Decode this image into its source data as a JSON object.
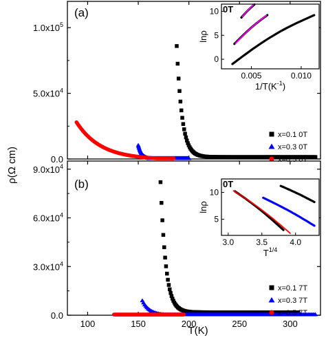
{
  "figure": {
    "ylabel": "ρ(Ω cm)",
    "xlabel": "T(K)"
  },
  "chart_data": [
    {
      "type": "scatter",
      "panel": "(a)",
      "xlabel": "T(K)",
      "ylabel": "ρ(Ω cm)",
      "xlim": [
        80,
        330
      ],
      "ylim": [
        0,
        120000
      ],
      "yticks": [
        0,
        50000,
        100000
      ],
      "ytick_labels": [
        "0.0",
        "5.0x10",
        "1.0x10"
      ],
      "ytick_exp": [
        "",
        "4",
        "5"
      ],
      "legend_position": "bottom-right",
      "series": [
        {
          "name": "x=0.1 0T",
          "color": "#000000",
          "marker": "square",
          "shape": "decay",
          "x_start": 188,
          "x_end": 325,
          "y_start": 86000,
          "y_end": 1500,
          "decay": 26
        },
        {
          "name": "x=0.3 0T",
          "color": "#0000ff",
          "marker": "triangle",
          "shape": "decay",
          "x_start": 150,
          "x_end": 200,
          "y_start": 10500,
          "y_end": 0,
          "decay": 14
        },
        {
          "name": "x=0.5 0T",
          "color": "#ff0000",
          "marker": "circle",
          "shape": "decay",
          "x_start": 89,
          "x_end": 185,
          "y_start": 28000,
          "y_end": 0,
          "decay": 4
        }
      ],
      "inset": {
        "annotation": "0T",
        "xlabel": "1/T(K",
        "xlabel_sup": "-1",
        "xlabel_end": ")",
        "ylabel": "lnρ",
        "xlim": [
          0.002,
          0.0118
        ],
        "ylim": [
          -2,
          11.5
        ],
        "xticks": [
          0.005,
          0.01
        ],
        "xtick_labels": [
          "0.005",
          "0.010"
        ],
        "yticks": [
          0,
          5,
          10
        ],
        "ytick_labels": [
          "0",
          "5",
          "10"
        ],
        "series": [
          {
            "color": "#000000",
            "x": [
              0.0031,
              0.0113
            ],
            "y": [
              -1.0,
              9.2
            ],
            "curve": 0.55
          },
          {
            "color": "#000000",
            "x": [
              0.0033,
              0.0066
            ],
            "y": [
              3.2,
              9.2
            ],
            "curve": 0.35
          },
          {
            "color": "#000000",
            "x": [
              0.004,
              0.0053
            ],
            "y": [
              8.7,
              11.4
            ],
            "curve": 0.3
          }
        ],
        "fits": [
          {
            "color": "#ff00ff",
            "x": [
              0.0034,
              0.0065
            ],
            "y": [
              3.3,
              9.1
            ],
            "curve": 0.35
          },
          {
            "color": "#ff00ff",
            "x": [
              0.0041,
              0.0052
            ],
            "y": [
              8.9,
              11.3
            ],
            "curve": 0.3
          }
        ]
      }
    },
    {
      "type": "scatter",
      "panel": "(b)",
      "xlabel": "T(K)",
      "ylabel": "ρ(Ω cm)",
      "xlim": [
        80,
        330
      ],
      "ylim": [
        0,
        95000
      ],
      "yticks": [
        0,
        30000,
        60000,
        90000
      ],
      "ytick_labels": [
        "0.0",
        "3.0x10",
        "6.0x10",
        "9.0x10"
      ],
      "ytick_exp": [
        "",
        "4",
        "4",
        "4"
      ],
      "xticks": [
        100,
        150,
        200,
        250,
        300
      ],
      "xtick_labels": [
        "100",
        "150",
        "200",
        "250",
        "300"
      ],
      "legend_position": "bottom-right",
      "series": [
        {
          "name": "x=0.1 7T",
          "color": "#000000",
          "marker": "square",
          "shape": "decay",
          "x_start": 172,
          "x_end": 308,
          "y_start": 82000,
          "y_end": 1800,
          "decay": 26
        },
        {
          "name": "x=0.3 7T",
          "color": "#0000ff",
          "marker": "triangle",
          "shape": "decay",
          "x_start": 154,
          "x_end": 325,
          "y_start": 9000,
          "y_end": 0,
          "decay": 24
        },
        {
          "name": "x=0.5 7T",
          "color": "#ff0000",
          "marker": "circle",
          "shape": "flat",
          "x_start": 126,
          "x_end": 195,
          "y_start": 0,
          "y_end": 0,
          "decay": 1
        }
      ],
      "inset": {
        "annotation": "0T",
        "xlabel": "T",
        "xlabel_sup": "1/4",
        "xlabel_end": "",
        "ylabel": "lnρ",
        "xlim": [
          2.9,
          4.35
        ],
        "ylim": [
          2,
          12.5
        ],
        "xticks": [
          3.0,
          3.5,
          4.0
        ],
        "xtick_labels": [
          "3.0",
          "3.5",
          "4.0"
        ],
        "yticks": [
          5,
          10
        ],
        "ytick_labels": [
          "5",
          "10"
        ],
        "series": [
          {
            "color": "#000000",
            "x": [
              3.1,
              3.82
            ],
            "y": [
              10.2,
              3.0
            ],
            "curve": 0.3
          },
          {
            "color": "#0000ff",
            "x": [
              3.52,
              4.28
            ],
            "y": [
              9.0,
              3.8
            ],
            "curve": 0.25
          },
          {
            "color": "#000000",
            "x": [
              3.78,
              4.28
            ],
            "y": [
              11.2,
              8.2
            ],
            "curve": 0.2
          }
        ],
        "fits": [
          {
            "color": "#ff0000",
            "x": [
              3.08,
              3.92
            ],
            "y": [
              10.3,
              2.4
            ],
            "curve": 0.32
          }
        ]
      }
    }
  ]
}
